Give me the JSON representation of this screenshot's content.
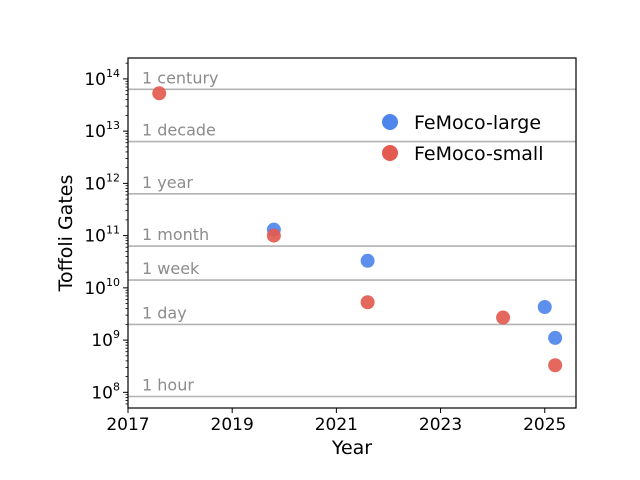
{
  "chart_data": {
    "type": "scatter",
    "title": "",
    "xlabel": "Year",
    "ylabel": "Toffoli Gates",
    "xlim": [
      2017,
      2025.6
    ],
    "ylim_log10": [
      7.7,
      14.4
    ],
    "yscale": "log",
    "xticks": [
      {
        "value": 2017,
        "label": "2017"
      },
      {
        "value": 2019,
        "label": "2019"
      },
      {
        "value": 2021,
        "label": "2021"
      },
      {
        "value": 2023,
        "label": "2023"
      },
      {
        "value": 2025,
        "label": "2025"
      }
    ],
    "yticks": [
      {
        "log10": 8,
        "base": "10",
        "exp": "8"
      },
      {
        "log10": 9,
        "base": "10",
        "exp": "9"
      },
      {
        "log10": 10,
        "base": "10",
        "exp": "10"
      },
      {
        "log10": 11,
        "base": "10",
        "exp": "11"
      },
      {
        "log10": 12,
        "base": "10",
        "exp": "12"
      },
      {
        "log10": 13,
        "base": "10",
        "exp": "13"
      },
      {
        "log10": 14,
        "base": "10",
        "exp": "14"
      }
    ],
    "reference_lines": [
      {
        "label": "1 century",
        "log10": 13.8
      },
      {
        "label": "1 decade",
        "log10": 12.8
      },
      {
        "label": "1 year",
        "log10": 11.8
      },
      {
        "label": "1 month",
        "log10": 10.8
      },
      {
        "label": "1 week",
        "log10": 10.15
      },
      {
        "label": "1 day",
        "log10": 9.3
      },
      {
        "label": "1 hour",
        "log10": 7.92
      }
    ],
    "series": [
      {
        "name": "FeMoco-large",
        "color": "#4f86ec",
        "points": [
          {
            "x": 2019.8,
            "y": 130000000000.0
          },
          {
            "x": 2021.6,
            "y": 33000000000.0
          },
          {
            "x": 2025.0,
            "y": 4300000000.0
          },
          {
            "x": 2025.2,
            "y": 1100000000.0
          }
        ]
      },
      {
        "name": "FeMoco-small",
        "color": "#e35b50",
        "points": [
          {
            "x": 2017.6,
            "y": 53000000000000.0
          },
          {
            "x": 2019.8,
            "y": 100000000000.0
          },
          {
            "x": 2021.6,
            "y": 5300000000.0
          },
          {
            "x": 2024.2,
            "y": 2700000000.0
          },
          {
            "x": 2025.2,
            "y": 330000000.0
          }
        ]
      }
    ],
    "legend": {
      "position": "upper-right"
    }
  }
}
